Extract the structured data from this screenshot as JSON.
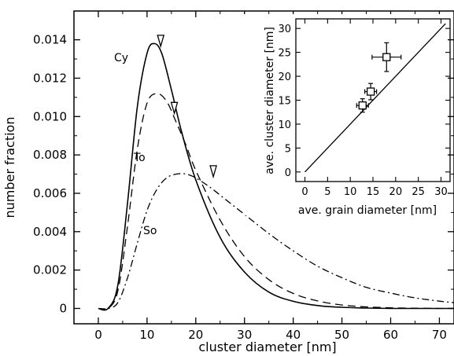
{
  "chart_data": [
    {
      "type": "line",
      "xlabel": "cluster diameter [nm]",
      "ylabel": "number fraction",
      "xlim": [
        -5,
        73
      ],
      "ylim": [
        -0.0008,
        0.0155
      ],
      "xticks": [
        "0",
        "10",
        "20",
        "30",
        "40",
        "50",
        "60",
        "70"
      ],
      "yticks": [
        "0",
        "0.002",
        "0.004",
        "0.006",
        "0.008",
        "0.010",
        "0.012",
        "0.014"
      ],
      "grid": false,
      "series": [
        {
          "name": "Cy",
          "style": "solid",
          "x": [
            0,
            2,
            4,
            6,
            8,
            10,
            11.5,
            13,
            15,
            17,
            20,
            25,
            30,
            35,
            40,
            45,
            50,
            55,
            60,
            65,
            70,
            73
          ],
          "y": [
            0,
            0,
            0.0012,
            0.0055,
            0.0105,
            0.0133,
            0.0138,
            0.0133,
            0.0114,
            0.0093,
            0.0067,
            0.0037,
            0.0019,
            0.00085,
            0.00037,
            0.00015,
            6e-05,
            2e-05,
            0,
            0,
            0,
            0
          ]
        },
        {
          "name": "To",
          "style": "dashed",
          "x": [
            0,
            2,
            4,
            6,
            8,
            10,
            12,
            14,
            16,
            18,
            20,
            25,
            30,
            35,
            40,
            45,
            50,
            55,
            60,
            65,
            70,
            73
          ],
          "y": [
            0,
            0,
            0.0009,
            0.0043,
            0.0083,
            0.0107,
            0.0112,
            0.0108,
            0.0097,
            0.0085,
            0.0072,
            0.0046,
            0.0027,
            0.0015,
            0.00078,
            0.00039,
            0.00018,
            8e-05,
            3e-05,
            1e-05,
            0,
            0
          ]
        },
        {
          "name": "So",
          "style": "dashdot",
          "x": [
            0,
            2,
            4,
            6,
            8,
            10,
            12,
            14,
            16,
            18,
            20,
            23,
            26,
            30,
            35,
            40,
            45,
            50,
            55,
            60,
            65,
            70,
            73
          ],
          "y": [
            0,
            0,
            0.0003,
            0.0016,
            0.0034,
            0.0051,
            0.0062,
            0.0068,
            0.007,
            0.007,
            0.0068,
            0.0063,
            0.0057,
            0.0049,
            0.0039,
            0.003,
            0.0022,
            0.0016,
            0.0011,
            0.0008,
            0.00055,
            0.00038,
            0.0003
          ]
        }
      ],
      "markers": [
        {
          "series": "Cy",
          "type": "triangle-down",
          "x": 12.8,
          "y": 0.01395
        },
        {
          "series": "To",
          "type": "triangle-down",
          "x": 15.6,
          "y": 0.01045
        },
        {
          "series": "So",
          "type": "triangle-down",
          "x": 23.6,
          "y": 0.00715
        }
      ],
      "inset": {
        "type": "scatter",
        "xlabel": "ave. grain diameter [nm]",
        "ylabel": "ave. cluster diameter [nm]",
        "xlim": [
          -2,
          32
        ],
        "ylim": [
          -2,
          32
        ],
        "xticks": [
          "0",
          "5",
          "10",
          "15",
          "20",
          "25",
          "30"
        ],
        "yticks": [
          "0",
          "5",
          "10",
          "15",
          "20",
          "25",
          "30"
        ],
        "points": [
          {
            "x": 12.7,
            "y": 13.9,
            "xerr": 1.3,
            "yerr": 1.4
          },
          {
            "x": 14.5,
            "y": 16.8,
            "xerr": 1.3,
            "yerr": 1.7
          },
          {
            "x": 18.0,
            "y": 24.0,
            "xerr": 3.2,
            "yerr": 3.0
          }
        ],
        "line": {
          "x": [
            0,
            31
          ],
          "y": [
            0,
            31
          ]
        }
      }
    }
  ]
}
